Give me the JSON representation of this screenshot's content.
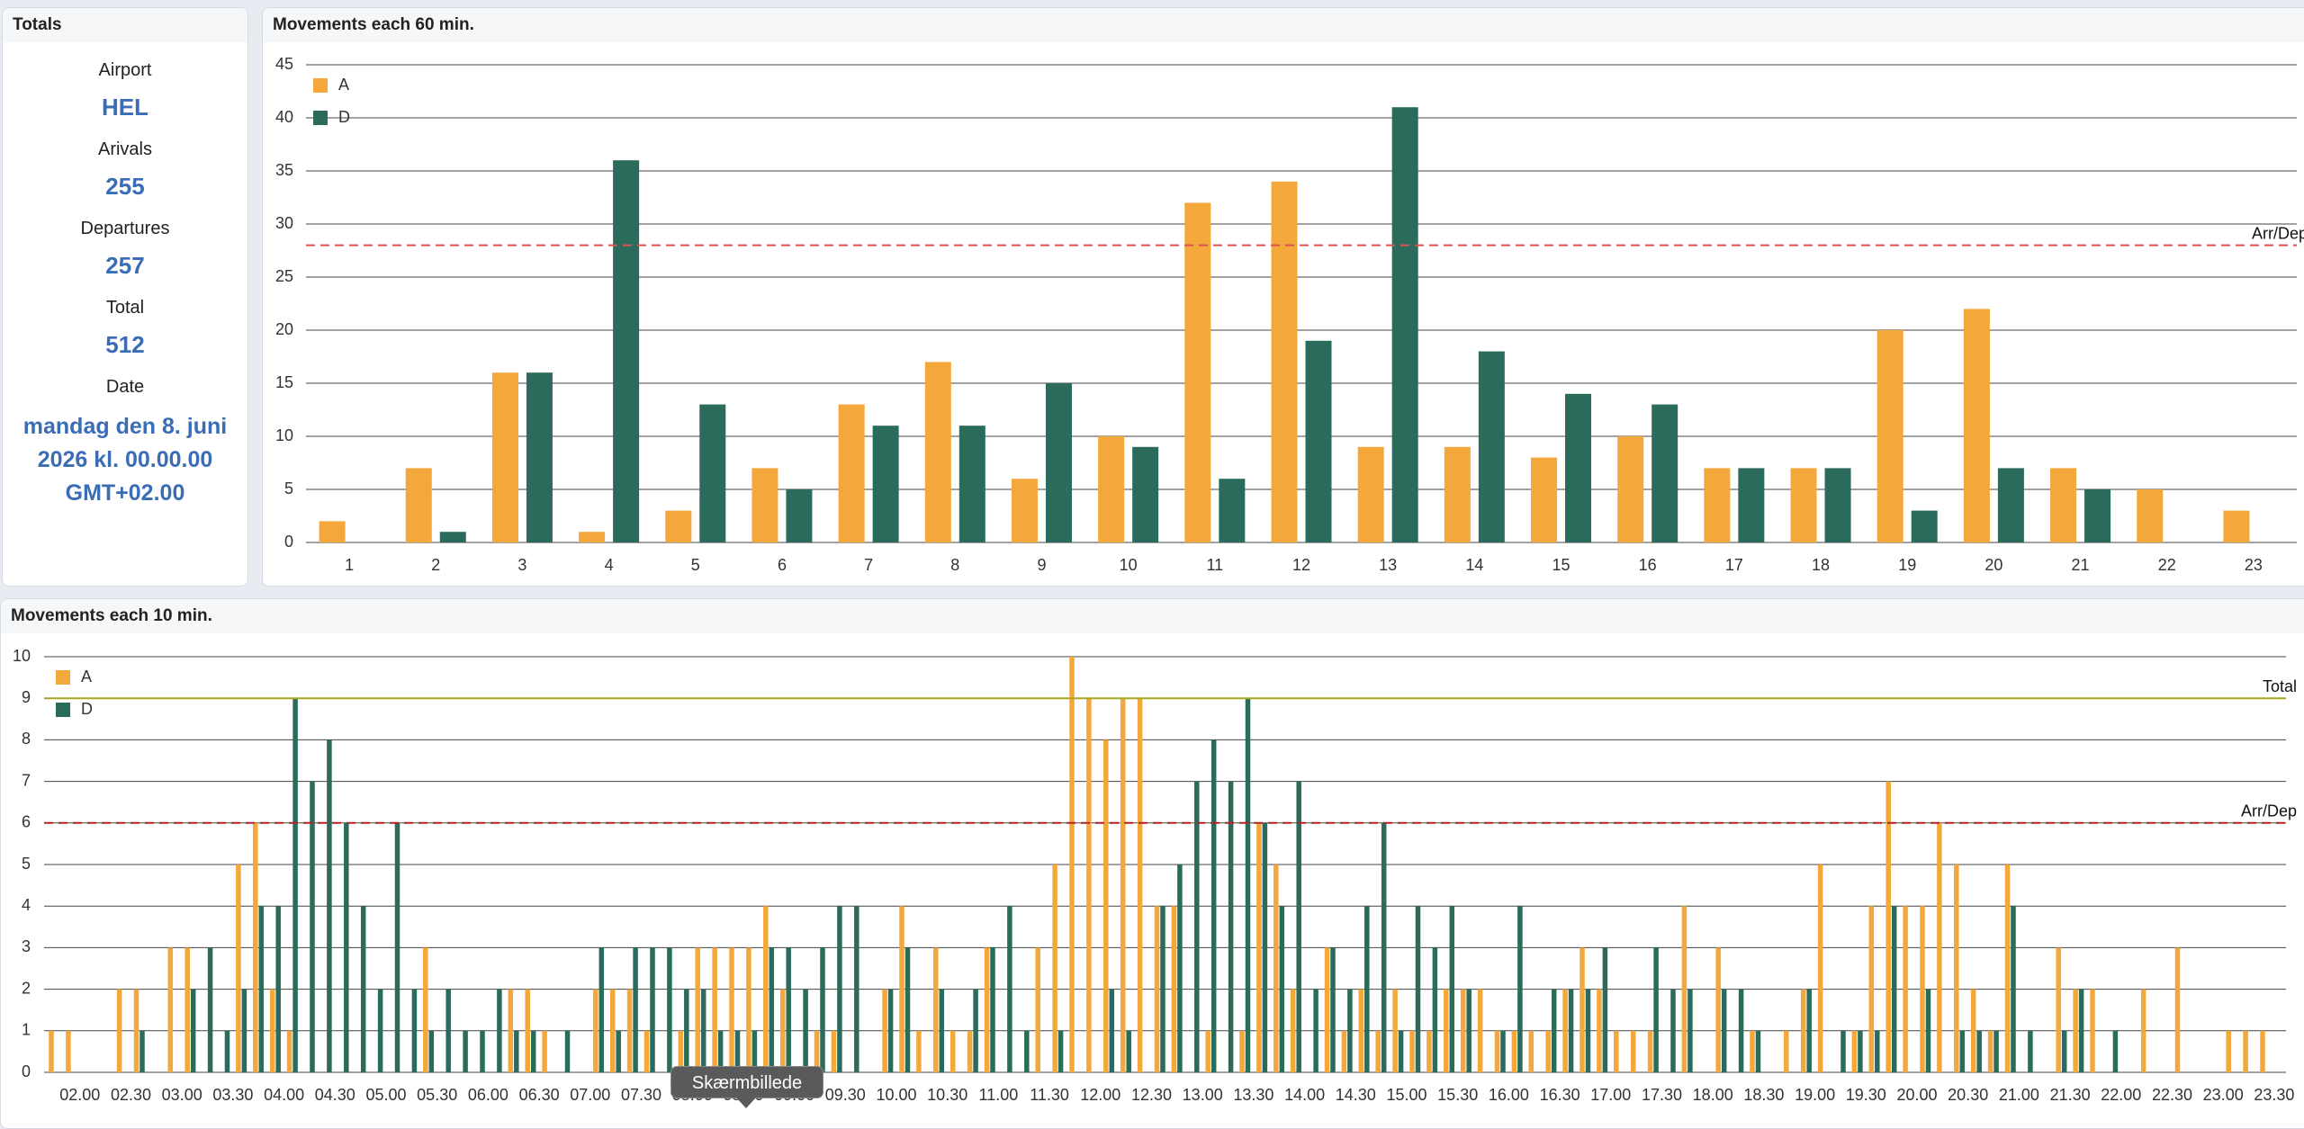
{
  "totals": {
    "title": "Totals",
    "items": [
      {
        "label": "Airport",
        "value": "HEL"
      },
      {
        "label": "Arivals",
        "value": 255
      },
      {
        "label": "Departures",
        "value": 257
      },
      {
        "label": "Total",
        "value": 512
      },
      {
        "label": "Date",
        "value": "mandag den 8. juni 2026 kl. 00.00.00 GMT+02.00"
      }
    ]
  },
  "chart_data": [
    {
      "type": "bar",
      "title": "Movements each 60 min.",
      "categories": [
        "1",
        "2",
        "3",
        "4",
        "5",
        "6",
        "7",
        "8",
        "9",
        "10",
        "11",
        "12",
        "13",
        "14",
        "15",
        "16",
        "17",
        "18",
        "19",
        "20",
        "21",
        "22",
        "23"
      ],
      "series": [
        {
          "name": "A",
          "color": "#f4a73b",
          "values": [
            2,
            7,
            16,
            1,
            3,
            7,
            13,
            17,
            6,
            10,
            32,
            34,
            9,
            9,
            8,
            10,
            7,
            7,
            20,
            22,
            7,
            5,
            3
          ]
        },
        {
          "name": "D",
          "color": "#2b6b5c",
          "values": [
            0,
            1,
            16,
            36,
            13,
            5,
            11,
            11,
            15,
            9,
            6,
            19,
            41,
            18,
            14,
            13,
            7,
            7,
            3,
            7,
            5,
            0,
            0
          ]
        }
      ],
      "ylim": [
        0,
        45
      ],
      "yticks": [
        0,
        5,
        10,
        15,
        20,
        25,
        30,
        35,
        40,
        45
      ],
      "grid": true,
      "legend": "top-left",
      "reference_lines": [
        {
          "label": "Arr/Dep",
          "value": 28,
          "color": "#d9534f",
          "dash": true
        }
      ]
    },
    {
      "type": "bar",
      "title": "Movements each 10 min.",
      "categories": [
        null,
        null,
        "02.00",
        null,
        null,
        "02.30",
        null,
        null,
        "03.00",
        null,
        null,
        "03.30",
        null,
        null,
        "04.00",
        null,
        null,
        "04.30",
        null,
        null,
        "05.00",
        null,
        null,
        "05.30",
        null,
        null,
        "06.00",
        null,
        null,
        "06.30",
        null,
        null,
        "07.00",
        null,
        null,
        "07.30",
        null,
        null,
        "08.00",
        null,
        null,
        "08.30",
        null,
        null,
        "09.00",
        null,
        null,
        "09.30",
        null,
        null,
        "10.00",
        null,
        null,
        "10.30",
        null,
        null,
        "11.00",
        null,
        null,
        "11.30",
        null,
        null,
        "12.00",
        null,
        null,
        "12.30",
        null,
        null,
        "13.00",
        null,
        null,
        "13.30",
        null,
        null,
        "14.00",
        null,
        null,
        "14.30",
        null,
        null,
        "15.00",
        null,
        null,
        "15.30",
        null,
        null,
        "16.00",
        null,
        null,
        "16.30",
        null,
        null,
        "17.00",
        null,
        null,
        "17.30",
        null,
        null,
        "18.00",
        null,
        null,
        "18.30",
        null,
        null,
        "19.00",
        null,
        null,
        "19.30",
        null,
        null,
        "20.00",
        null,
        null,
        "20.30",
        null,
        null,
        "21.00",
        null,
        null,
        "21.30",
        null,
        null,
        "22.00",
        null,
        null,
        "22.30",
        null,
        null,
        "23.00",
        null,
        null,
        "23.30"
      ],
      "series": [
        {
          "name": "A",
          "color": "#f4a73b",
          "values": [
            1,
            1,
            0,
            0,
            2,
            2,
            0,
            3,
            3,
            0,
            0,
            5,
            6,
            2,
            1,
            0,
            0,
            0,
            0,
            0,
            0,
            0,
            3,
            0,
            0,
            0,
            0,
            2,
            2,
            1,
            0,
            0,
            2,
            2,
            2,
            1,
            0,
            1,
            3,
            3,
            3,
            3,
            4,
            2,
            0,
            1,
            1,
            0,
            0,
            2,
            4,
            1,
            3,
            1,
            1,
            3,
            0,
            0,
            3,
            5,
            10,
            9,
            8,
            9,
            9,
            4,
            4,
            0,
            1,
            0,
            1,
            6,
            5,
            2,
            0,
            3,
            1,
            2,
            1,
            2,
            1,
            1,
            2,
            2,
            2,
            1,
            1,
            1,
            1,
            2,
            3,
            2,
            1,
            1,
            1,
            0,
            4,
            0,
            3,
            0,
            1,
            0,
            1,
            2,
            5,
            0,
            1,
            4,
            7,
            4,
            4,
            6,
            5,
            2,
            1,
            5,
            0,
            0,
            3,
            2,
            2,
            0,
            0,
            2,
            0,
            3,
            0,
            0,
            1,
            1,
            1,
            0
          ]
        },
        {
          "name": "D",
          "color": "#2b6b5c",
          "values": [
            0,
            0,
            0,
            0,
            0,
            1,
            0,
            0,
            2,
            3,
            1,
            2,
            4,
            4,
            9,
            7,
            8,
            6,
            4,
            2,
            6,
            2,
            1,
            2,
            1,
            1,
            2,
            1,
            1,
            0,
            1,
            0,
            3,
            1,
            3,
            3,
            3,
            2,
            2,
            1,
            1,
            1,
            3,
            3,
            2,
            3,
            4,
            4,
            0,
            2,
            3,
            0,
            2,
            0,
            2,
            3,
            4,
            1,
            0,
            1,
            0,
            0,
            2,
            1,
            0,
            4,
            5,
            7,
            8,
            7,
            9,
            6,
            4,
            7,
            2,
            3,
            2,
            4,
            6,
            1,
            4,
            3,
            4,
            2,
            0,
            1,
            4,
            0,
            2,
            2,
            2,
            3,
            0,
            0,
            3,
            2,
            2,
            0,
            2,
            2,
            1,
            0,
            0,
            2,
            0,
            1,
            1,
            1,
            4,
            0,
            2,
            0,
            1,
            1,
            1,
            4,
            1,
            0,
            1,
            2,
            0,
            1,
            0,
            0,
            0,
            0,
            0,
            0,
            0,
            0,
            0,
            0
          ]
        }
      ],
      "ylim": [
        0,
        10
      ],
      "yticks": [
        0,
        1,
        2,
        3,
        4,
        5,
        6,
        7,
        8,
        9,
        10
      ],
      "grid": true,
      "legend": "top-left",
      "reference_lines": [
        {
          "label": "Total",
          "value": 9,
          "color": "#a8a820",
          "dash": false
        },
        {
          "label": "Arr/Dep",
          "value": 6,
          "color": "#b22222",
          "dash": true
        }
      ]
    }
  ],
  "tooltip": "Skærmbillede"
}
